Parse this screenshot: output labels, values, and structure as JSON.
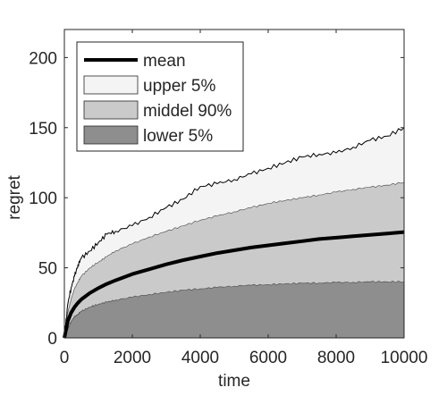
{
  "chart_data": {
    "type": "area",
    "title": "",
    "xlabel": "time",
    "ylabel": "regret",
    "xlim": [
      0,
      10000
    ],
    "ylim": [
      0,
      220
    ],
    "x_ticks": [
      0,
      2000,
      4000,
      6000,
      8000,
      10000
    ],
    "y_ticks": [
      0,
      50,
      100,
      150,
      200
    ],
    "x_tick_labels": [
      "0",
      "2000",
      "4000",
      "6000",
      "8000",
      "10000"
    ],
    "y_tick_labels": [
      "0",
      "50",
      "100",
      "150",
      "200"
    ],
    "grid": false,
    "legend_position": "top-left",
    "x": [
      0,
      100,
      200,
      300,
      400,
      500,
      750,
      1000,
      1250,
      1500,
      2000,
      2500,
      3000,
      3500,
      4000,
      4500,
      5000,
      5500,
      6000,
      6500,
      7000,
      7500,
      8000,
      8500,
      9000,
      9500,
      10000
    ],
    "series": [
      {
        "name": "mean",
        "style": "line",
        "color": "#000000",
        "values": [
          0,
          12,
          18,
          22,
          25,
          27.5,
          32,
          35.5,
          38.5,
          41,
          45.5,
          49,
          52.5,
          55.5,
          58,
          60.5,
          62.5,
          64.5,
          66,
          67.5,
          69,
          70.5,
          71.5,
          72.5,
          73.5,
          74.5,
          75.5
        ]
      },
      {
        "name": "upper 5%",
        "style": "band",
        "color": "#f4f4f4",
        "values": [
          0,
          24,
          36,
          44,
          52,
          57,
          62,
          68,
          74,
          76,
          80,
          86,
          93,
          99,
          108,
          110,
          113,
          117,
          121,
          125,
          129,
          131,
          132,
          136,
          141,
          144,
          150
        ]
      },
      {
        "name": "middel 90%",
        "style": "band",
        "color": "#cacaca",
        "values": [
          0,
          18,
          28,
          35,
          40,
          44,
          50,
          54,
          58,
          62,
          67,
          72,
          76,
          80,
          84,
          87,
          90,
          93,
          96,
          98,
          100,
          102,
          104,
          106,
          107.5,
          109,
          111
        ]
      },
      {
        "name": "lower 5%",
        "style": "band",
        "color": "#8e8e8e",
        "values": [
          0,
          6,
          12,
          15,
          17,
          19,
          22,
          24,
          25.5,
          27,
          29,
          31,
          32.5,
          34,
          35,
          36,
          37,
          37.5,
          38,
          38.5,
          39,
          39.2,
          39.5,
          39.7,
          40,
          40,
          40
        ]
      }
    ]
  }
}
